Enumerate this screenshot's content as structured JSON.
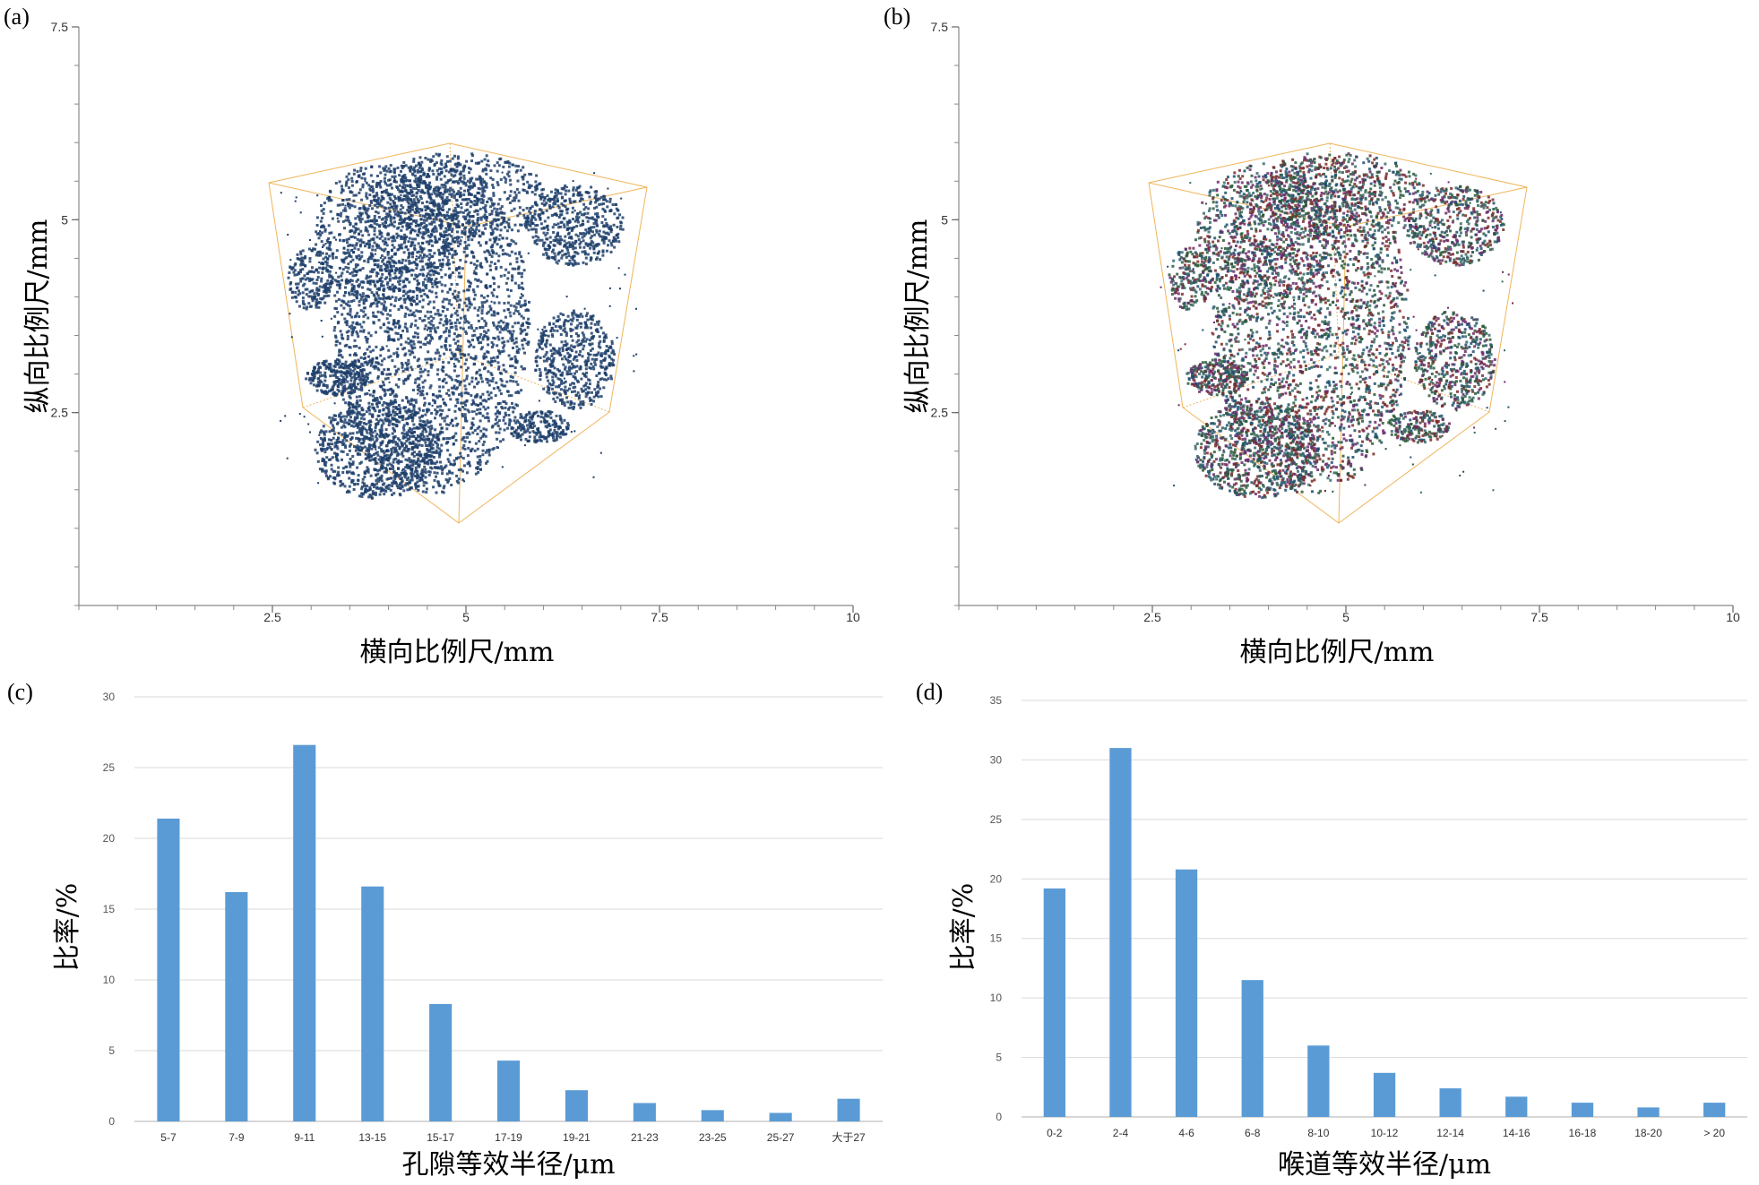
{
  "panels": {
    "a": {
      "label": "(a)"
    },
    "b": {
      "label": "(b)"
    },
    "c": {
      "label": "(c)"
    },
    "d": {
      "label": "(d)"
    }
  },
  "chart_data": [
    {
      "type": "scatter",
      "panel": "(a)",
      "description_kind": "3D pore network rendering",
      "xlabel": "横向比例尺/mm",
      "ylabel": "纵向比例尺/mm",
      "xticks": [
        "2.5",
        "5",
        "7.5",
        "10"
      ],
      "yticks": [
        "2.5",
        "5",
        "7.5"
      ],
      "xlim": [
        0,
        10
      ],
      "ylim": [
        0,
        7.5
      ],
      "color": "#1f3f6b",
      "grid": false
    },
    {
      "type": "scatter",
      "panel": "(b)",
      "description_kind": "3D pore network rendering (multicolor)",
      "xlabel": "横向比例尺/mm",
      "ylabel": "纵向比例尺/mm",
      "xticks": [
        "2.5",
        "5",
        "7.5",
        "10"
      ],
      "yticks": [
        "2.5",
        "5",
        "7.5"
      ],
      "xlim": [
        0,
        10
      ],
      "ylim": [
        0,
        7.5
      ],
      "colors": [
        "#2a5a3a",
        "#6a2a6a",
        "#1f4f6f",
        "#7a2a2a",
        "#3a6a6a"
      ],
      "grid": false
    },
    {
      "type": "bar",
      "panel": "(c)",
      "categories": [
        "5-7",
        "7-9",
        "9-11",
        "13-15",
        "15-17",
        "17-19",
        "19-21",
        "21-23",
        "23-25",
        "25-27",
        "大于27"
      ],
      "values": [
        21.4,
        16.2,
        26.6,
        16.6,
        8.3,
        4.3,
        2.2,
        1.3,
        0.8,
        0.6,
        1.6
      ],
      "xlabel": "孔隙等效半径/μm",
      "ylabel": "比率/%",
      "ylim": [
        0,
        30
      ],
      "yticks": [
        "0",
        "5",
        "10",
        "15",
        "20",
        "25",
        "30"
      ],
      "color": "#5b9bd5",
      "grid": true
    },
    {
      "type": "bar",
      "panel": "(d)",
      "categories": [
        "0-2",
        "2-4",
        "4-6",
        "6-8",
        "8-10",
        "10-12",
        "12-14",
        "14-16",
        "16-18",
        "18-20",
        "> 20"
      ],
      "values": [
        19.2,
        31.0,
        20.8,
        11.5,
        6.0,
        3.7,
        2.4,
        1.7,
        1.2,
        0.8,
        1.2
      ],
      "xlabel": "喉道等效半径/μm",
      "ylabel": "比率/%",
      "ylim": [
        0,
        35
      ],
      "yticks": [
        "0",
        "5",
        "10",
        "15",
        "20",
        "25",
        "30",
        "35"
      ],
      "color": "#5b9bd5",
      "grid": true
    }
  ]
}
